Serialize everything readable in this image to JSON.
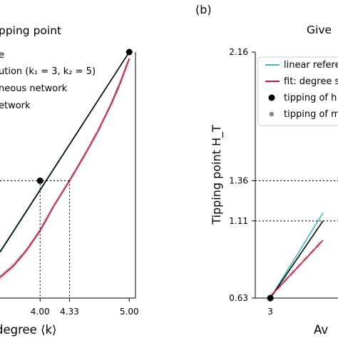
{
  "figure": {
    "panel_b_label": "(b)",
    "colors": {
      "linear": "#3fb8c4",
      "fit": "#c0183c",
      "homogeneous": "#000000",
      "mixture": "#8a8a8a",
      "axis": "#000000"
    }
  },
  "chart_data": [
    {
      "panel": "(a)",
      "type": "scatter",
      "title": "pping point",
      "xlabel": "degree ⟨k⟩",
      "ylabel": "",
      "xlim": [
        3.55,
        5.07
      ],
      "ylim": [
        0.63,
        2.16
      ],
      "x_ticks": [
        "4.00",
        "4.33",
        "5.00"
      ],
      "legend": {
        "placement": "top-left",
        "entries": [
          "e",
          "ution (k₁ = 3, k₂ = 5)",
          "neous network",
          "etwork"
        ]
      },
      "series": [
        {
          "role": "linear",
          "type": "line",
          "x": [
            3.55,
            5.0
          ],
          "y": [
            0.92,
            2.16
          ]
        },
        {
          "role": "homogeneous",
          "type": "line",
          "x": [
            3.55,
            5.0
          ],
          "y": [
            0.915,
            2.16
          ]
        },
        {
          "role": "fit",
          "type": "line",
          "x": [
            3.55,
            3.7,
            3.85,
            4.0,
            4.15,
            4.33,
            4.5,
            4.65,
            4.8,
            4.9,
            5.0
          ],
          "y": [
            0.76,
            0.83,
            0.93,
            1.05,
            1.2,
            1.36,
            1.52,
            1.67,
            1.84,
            1.97,
            2.12
          ]
        },
        {
          "role": "tipping_points",
          "type": "scatter",
          "x": [
            4.0,
            5.0
          ],
          "y": [
            1.36,
            2.16
          ]
        }
      ],
      "reference_lines": {
        "horizontal_y": 1.36,
        "vertical_x": [
          4.0,
          4.33
        ]
      }
    },
    {
      "panel": "(b)",
      "type": "scatter",
      "title": "Give",
      "xlabel": "Av",
      "ylabel": "Tipping point H_T",
      "y_ticks": [
        "0.63",
        "1.11",
        "1.36",
        "2.16"
      ],
      "x_ticks": [
        "3"
      ],
      "ylim": [
        0.63,
        2.16
      ],
      "legend": {
        "placement": "top-left",
        "entries": [
          "linear refere",
          "fit: degree s",
          "tipping of h",
          "tipping of m"
        ]
      },
      "series": [
        {
          "role": "linear",
          "type": "line",
          "x": [
            3.0,
            3.28
          ],
          "y": [
            0.63,
            1.16
          ]
        },
        {
          "role": "homogeneous",
          "type": "line",
          "x": [
            3.0,
            3.28
          ],
          "y": [
            0.63,
            1.11
          ]
        },
        {
          "role": "fit",
          "type": "line",
          "x": [
            3.0,
            3.28
          ],
          "y": [
            0.64,
            0.99
          ]
        },
        {
          "role": "tipping_points",
          "type": "scatter",
          "x": [
            3.0
          ],
          "y": [
            0.63
          ]
        }
      ],
      "reference_lines": {
        "horizontal_y": [
          1.36,
          1.11
        ]
      }
    }
  ]
}
